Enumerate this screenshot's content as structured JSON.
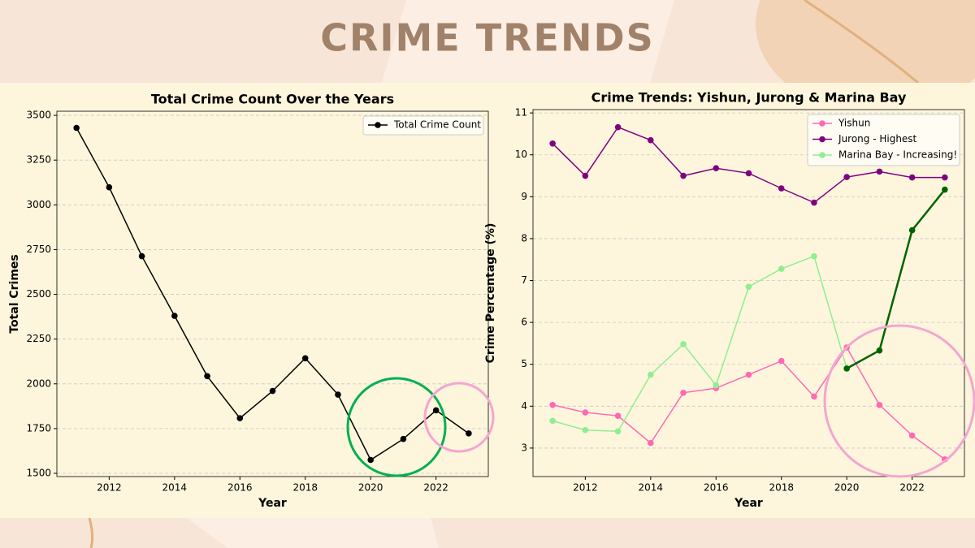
{
  "title": "CRIME TRENDS",
  "chart_data": [
    {
      "type": "line",
      "title": "Total Crime Count Over the Years",
      "xlabel": "Year",
      "ylabel": "Total Crimes",
      "x": [
        2011,
        2012,
        2013,
        2014,
        2015,
        2016,
        2017,
        2018,
        2019,
        2020,
        2021,
        2022,
        2023
      ],
      "series": [
        {
          "name": "Total Crime Count",
          "color": "#000000",
          "values": [
            3430,
            3098,
            2713,
            2380,
            2043,
            1808,
            1960,
            2143,
            1940,
            1575,
            1692,
            1852,
            1723
          ]
        }
      ],
      "xlim": [
        2010.4,
        2023.6
      ],
      "xticks": [
        2012,
        2014,
        2016,
        2018,
        2020,
        2022
      ],
      "ylim": [
        1482,
        3523
      ],
      "yticks": [
        1500,
        1750,
        2000,
        2250,
        2500,
        2750,
        3000,
        3250,
        3500
      ],
      "grid": true,
      "legend": "upper-right"
    },
    {
      "type": "line",
      "title": "Crime Trends: Yishun, Jurong & Marina Bay",
      "xlabel": "Year",
      "ylabel": "Crime Percentage (%)",
      "x": [
        2011,
        2012,
        2013,
        2014,
        2015,
        2016,
        2017,
        2018,
        2019,
        2020,
        2021,
        2022,
        2023
      ],
      "series": [
        {
          "name": "Yishun",
          "color": "#ff69b4",
          "values": [
            4.03,
            3.85,
            3.77,
            3.12,
            4.32,
            4.43,
            4.75,
            5.08,
            4.23,
            5.4,
            4.03,
            3.3,
            2.73
          ]
        },
        {
          "name": "Jurong - Highest",
          "color": "#800080",
          "values": [
            10.27,
            9.5,
            10.66,
            10.35,
            9.5,
            9.68,
            9.56,
            9.2,
            8.86,
            9.47,
            9.6,
            9.46,
            9.46
          ]
        },
        {
          "name": "Marina Bay - Increasing!",
          "color": "#90ee90",
          "values": [
            3.65,
            3.43,
            3.4,
            4.75,
            5.48,
            4.5,
            6.85,
            7.28,
            7.58,
            4.9,
            5.33,
            8.2,
            9.17
          ]
        },
        {
          "color": "#006400",
          "linewidth": 2.5,
          "values": [
            null,
            null,
            null,
            null,
            null,
            null,
            null,
            null,
            null,
            4.9,
            5.33,
            8.2,
            9.17
          ]
        }
      ],
      "xlim": [
        2010.4,
        2023.6
      ],
      "xticks": [
        2012,
        2014,
        2016,
        2018,
        2020,
        2022
      ],
      "ylim": [
        2.32,
        11.08
      ],
      "yticks": [
        3,
        4,
        5,
        6,
        7,
        8,
        9,
        10,
        11
      ],
      "grid": true,
      "legend": "upper-right"
    }
  ]
}
